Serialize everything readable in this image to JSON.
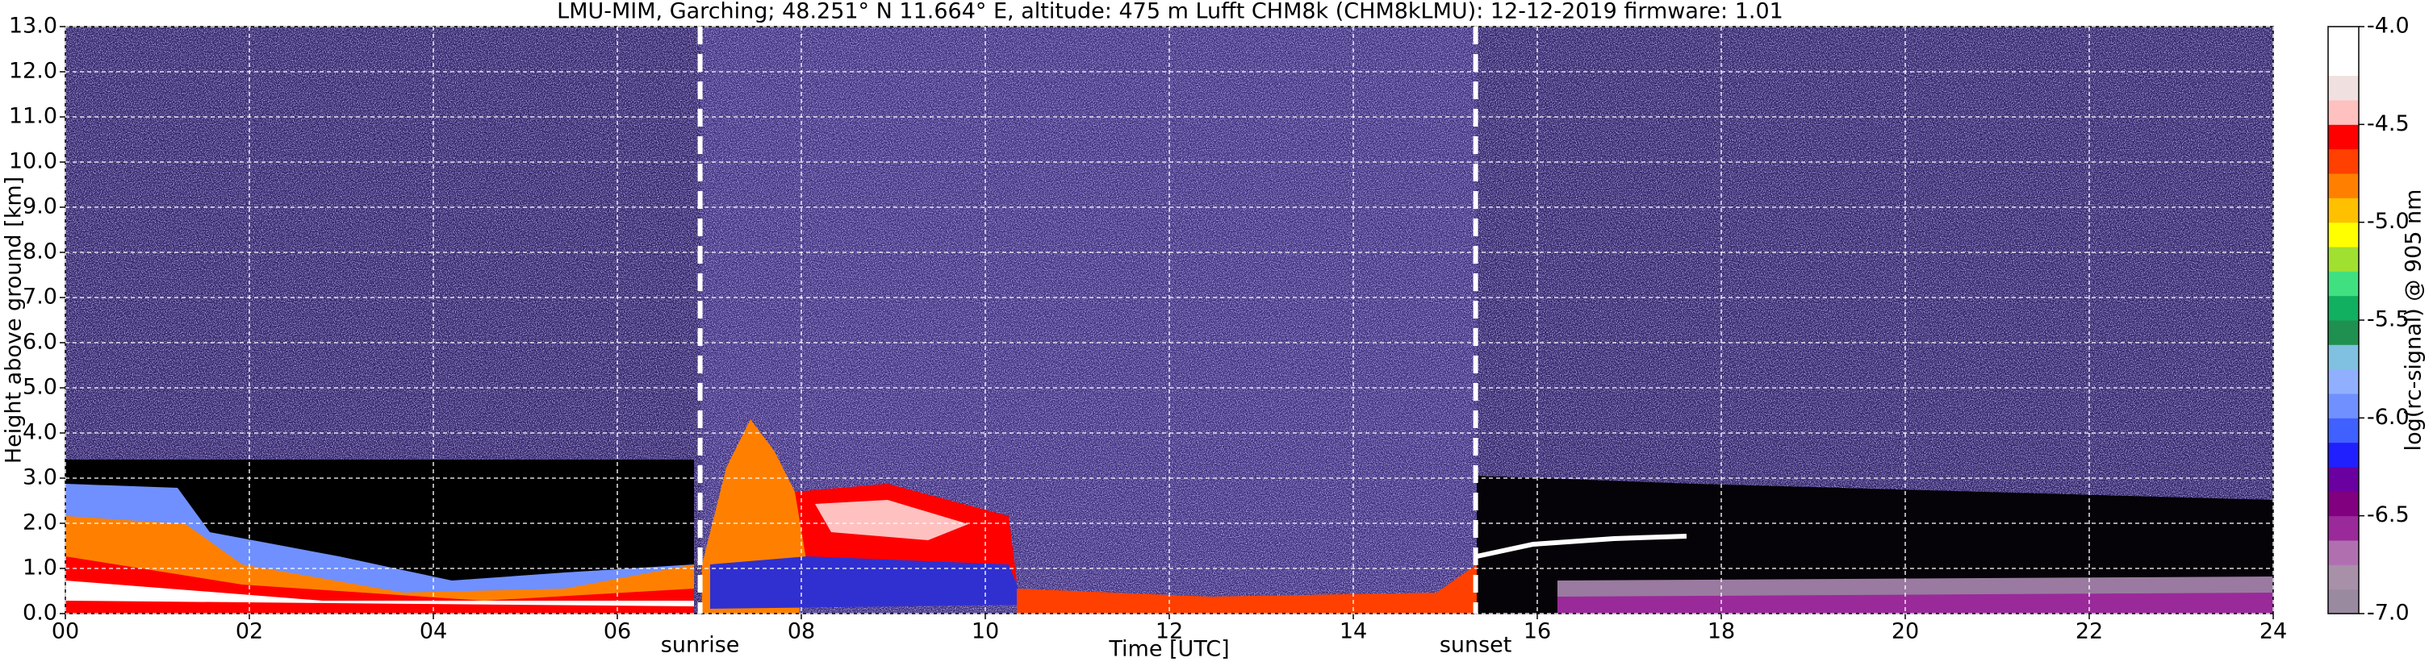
{
  "chart_data": {
    "type": "heatmap",
    "title": "LMU-MIM, Garching; 48.251° N 11.664° E, altitude: 475 m    Lufft CHM8k (CHM8kLMU): 12-12-2019    firmware: 1.01",
    "x_label": "Time [UTC]",
    "y_label": "Height above ground [km]",
    "colorbar_label": "log(rc-signal) @ 905 nm",
    "xlim": [
      0,
      24
    ],
    "xticks": [
      {
        "value": 0,
        "label": "00"
      },
      {
        "value": 2,
        "label": "02"
      },
      {
        "value": 4,
        "label": "04"
      },
      {
        "value": 6,
        "label": "06"
      },
      {
        "value": 8,
        "label": "08"
      },
      {
        "value": 10,
        "label": "10"
      },
      {
        "value": 12,
        "label": "12"
      },
      {
        "value": 14,
        "label": "14"
      },
      {
        "value": 16,
        "label": "16"
      },
      {
        "value": 18,
        "label": "18"
      },
      {
        "value": 20,
        "label": "20"
      },
      {
        "value": 22,
        "label": "22"
      },
      {
        "value": 24,
        "label": "24"
      }
    ],
    "ylim": [
      0,
      13
    ],
    "yticks": [
      {
        "value": 0,
        "label": "0.0"
      },
      {
        "value": 1,
        "label": "1.0"
      },
      {
        "value": 2,
        "label": "2.0"
      },
      {
        "value": 3,
        "label": "3.0"
      },
      {
        "value": 4,
        "label": "4.0"
      },
      {
        "value": 5,
        "label": "5.0"
      },
      {
        "value": 6,
        "label": "6.0"
      },
      {
        "value": 7,
        "label": "7.0"
      },
      {
        "value": 8,
        "label": "8.0"
      },
      {
        "value": 9,
        "label": "9.0"
      },
      {
        "value": 10,
        "label": "10.0"
      },
      {
        "value": 11,
        "label": "11.0"
      },
      {
        "value": 12,
        "label": "12.0"
      },
      {
        "value": 13,
        "label": "13.0"
      }
    ],
    "grid": true,
    "clim": [
      -7,
      -4
    ],
    "cticks": [
      {
        "value": -7,
        "label": "-7.0"
      },
      {
        "value": -6.5,
        "label": "-6.5"
      },
      {
        "value": -6,
        "label": "-6.0"
      },
      {
        "value": -5.5,
        "label": "-5.5"
      },
      {
        "value": -5,
        "label": "-5.0"
      },
      {
        "value": -4.5,
        "label": "-4.5"
      },
      {
        "value": -4,
        "label": "-4.0"
      }
    ],
    "colormap": [
      "#9a8aa0",
      "#a890a8",
      "#b070b0",
      "#9a2a9a",
      "#800080",
      "#6a00a0",
      "#2020ff",
      "#4060ff",
      "#7090ff",
      "#90b0ff",
      "#80c0e0",
      "#209050",
      "#10b060",
      "#40e080",
      "#a0e030",
      "#ffff00",
      "#ffc000",
      "#ff8000",
      "#ff4000",
      "#ff0000",
      "#ffc0c0",
      "#f0e0e0",
      "#ffffff",
      "#ffffff"
    ],
    "annotations": [
      {
        "text": "sunrise",
        "x": 6.9
      },
      {
        "text": "sunset",
        "x": 15.33
      }
    ]
  }
}
